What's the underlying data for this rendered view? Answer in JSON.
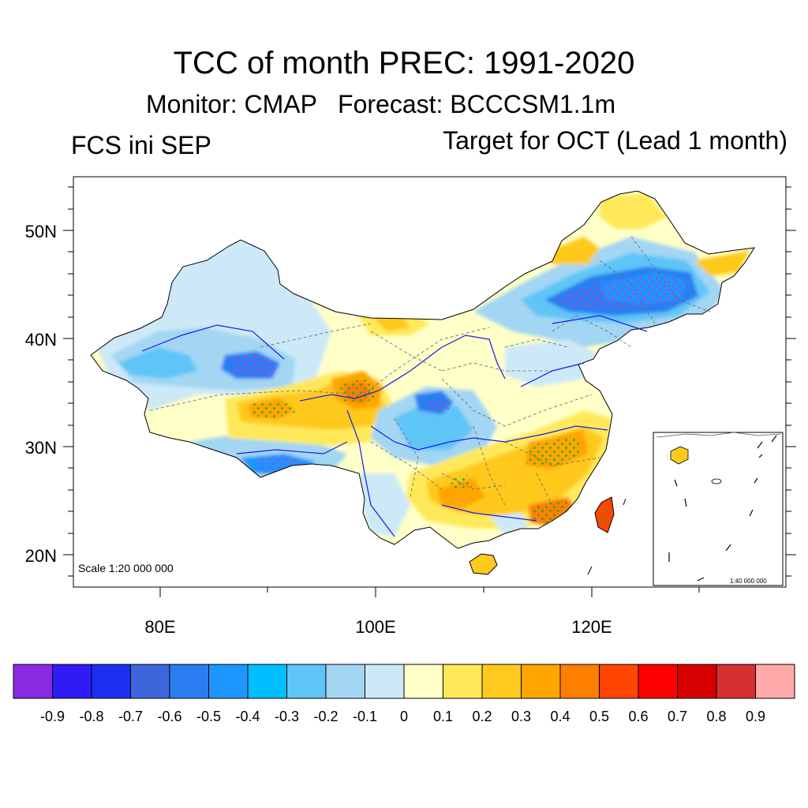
{
  "title": "TCC of month PREC: 1991-2020",
  "subtitle": "Monitor: CMAP   Forecast: BCCCSM1.1m",
  "left_label": "FCS ini SEP",
  "right_label": "Target for OCT (Lead 1 month)",
  "map": {
    "lat_labels": [
      "50N",
      "40N",
      "30N",
      "20N"
    ],
    "lon_labels": [
      "80E",
      "100E",
      "120E"
    ],
    "scale_text": "Scale 1:20 000 000",
    "inset_scale_text": "1:40 000 000"
  },
  "colorbar": {
    "colors": [
      "#8a2be2",
      "#2f1bf5",
      "#1c2ff0",
      "#3d66dd",
      "#2b7ef2",
      "#1e96ff",
      "#00bfff",
      "#5ec5f7",
      "#a3d6f2",
      "#cde9f7",
      "#ffffc8",
      "#ffe95a",
      "#ffc91e",
      "#ffa500",
      "#ff7f00",
      "#ff4500",
      "#ff0000",
      "#d60000",
      "#d73030",
      "#ffaaaa"
    ],
    "labels": [
      "-0.9",
      "-0.8",
      "-0.7",
      "-0.6",
      "-0.5",
      "-0.4",
      "-0.3",
      "-0.2",
      "-0.1",
      "0",
      "0.1",
      "0.2",
      "0.3",
      "0.4",
      "0.5",
      "0.6",
      "0.7",
      "0.8",
      "0.9"
    ]
  }
}
